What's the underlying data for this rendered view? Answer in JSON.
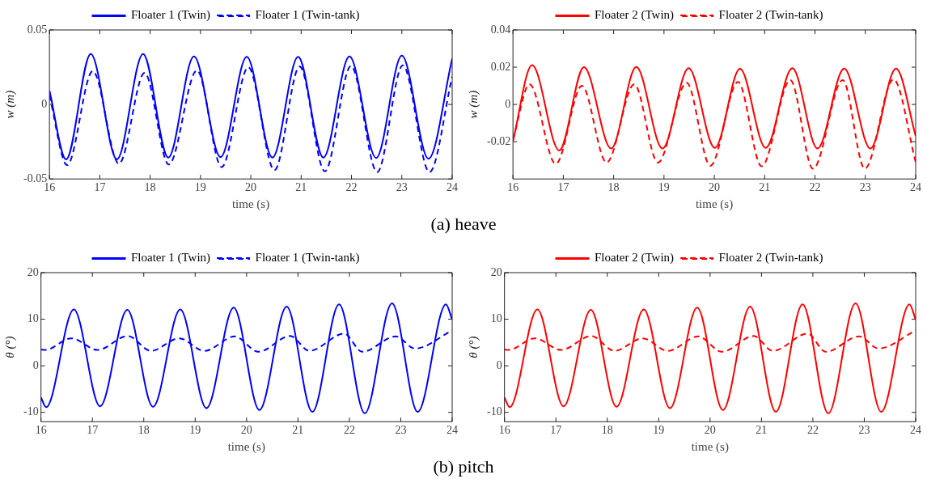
{
  "chart_data": [
    {
      "type": "line",
      "xlabel": "time (s)",
      "ylabel": "w (m)",
      "xlim": [
        16,
        24
      ],
      "xticks": [
        16,
        17,
        18,
        19,
        20,
        21,
        22,
        23,
        24
      ],
      "ylim": [
        -0.05,
        0.05
      ],
      "yticks": [
        -0.05,
        0,
        0.05
      ],
      "legend": "top",
      "marker": "none",
      "annotations": [
        "(a) heave"
      ],
      "series": [
        {
          "name": "Floater 1 (Twin)",
          "color": "#0000ff",
          "line_style": "solid",
          "x": [
            16,
            16.33,
            16.82,
            17.34,
            17.86,
            18.36,
            18.87,
            19.4,
            19.92,
            20.43,
            20.94,
            21.44,
            21.96,
            22.49,
            23,
            23.53,
            24
          ],
          "values": [
            0.0093,
            -0.0369,
            0.0339,
            -0.0368,
            0.0339,
            -0.0356,
            0.0322,
            -0.0353,
            0.0319,
            -0.0356,
            0.0319,
            -0.0356,
            0.0322,
            -0.0359,
            0.0327,
            -0.0364,
            0.0308
          ]
        },
        {
          "name": "Floater 1 (Twin-tank)",
          "color": "#0000ff",
          "line_style": "dashed",
          "x": [
            16,
            16.35,
            16.86,
            17.38,
            17.89,
            18.37,
            18.93,
            19.42,
            19.95,
            20.47,
            20.97,
            21.47,
            21.99,
            22.51,
            23.02,
            23.55,
            24
          ],
          "values": [
            0.006,
            -0.0407,
            0.0224,
            -0.0398,
            0.0212,
            -0.0403,
            0.0229,
            -0.042,
            0.0249,
            -0.0441,
            0.0254,
            -0.0449,
            0.0258,
            -0.0454,
            0.0263,
            -0.0454,
            0.0186
          ]
        }
      ]
    },
    {
      "type": "line",
      "xlabel": "time (s)",
      "ylabel": "w (m)",
      "xlim": [
        16,
        24
      ],
      "xticks": [
        16,
        17,
        18,
        19,
        20,
        21,
        22,
        23,
        24
      ],
      "ylim": [
        -0.04,
        0.04
      ],
      "yticks": [
        -0.02,
        0,
        0.02,
        0.04
      ],
      "legend": "top",
      "marker": "none",
      "series": [
        {
          "name": "Floater 2 (Twin)",
          "color": "#ff0000",
          "line_style": "solid",
          "x": [
            16,
            16.38,
            16.92,
            17.41,
            17.95,
            18.45,
            18.97,
            19.49,
            20.01,
            20.51,
            21.02,
            21.55,
            22.05,
            22.58,
            23.1,
            23.61,
            24
          ],
          "values": [
            -0.0196,
            0.0211,
            -0.0247,
            0.02,
            -0.0236,
            0.0201,
            -0.0236,
            0.0195,
            -0.0233,
            0.0191,
            -0.0233,
            0.0195,
            -0.0236,
            0.0193,
            -0.0236,
            0.0193,
            -0.0169
          ]
        },
        {
          "name": "Floater 2 (Twin-tank)",
          "color": "#ff0000",
          "line_style": "dashed",
          "x": [
            16,
            16.33,
            16.85,
            17.37,
            17.86,
            18.41,
            18.88,
            19.45,
            19.92,
            20.47,
            20.94,
            21.51,
            21.96,
            22.55,
            22.99,
            23.56,
            24
          ],
          "values": [
            -0.0189,
            0.0108,
            -0.0319,
            0.01,
            -0.0312,
            0.0108,
            -0.0312,
            0.0117,
            -0.0329,
            0.0121,
            -0.0332,
            0.0131,
            -0.0345,
            0.0131,
            -0.0345,
            0.0135,
            -0.0309
          ]
        }
      ]
    },
    {
      "type": "line",
      "xlabel": "time (s)",
      "ylabel": "θ (°)",
      "xlim": [
        16,
        24
      ],
      "xticks": [
        16,
        17,
        18,
        19,
        20,
        21,
        22,
        23,
        24
      ],
      "ylim": [
        -12,
        20
      ],
      "yticks": [
        -10,
        0,
        10,
        20
      ],
      "legend": "top",
      "marker": "none",
      "annotations": [
        "(b) pitch"
      ],
      "series": [
        {
          "name": "Floater 1 (Twin)",
          "color": "#0000ff",
          "line_style": "solid",
          "x": [
            16,
            16.1,
            16.64,
            17.15,
            17.68,
            18.18,
            18.71,
            19.22,
            19.75,
            20.25,
            20.78,
            21.28,
            21.8,
            22.3,
            22.83,
            23.33,
            23.88,
            24
          ],
          "values": [
            -6.8,
            -8.9,
            12.1,
            -8.7,
            12,
            -8.8,
            12.1,
            -9.1,
            12.5,
            -9.5,
            12.7,
            -9.9,
            13.2,
            -10.2,
            13.4,
            -9.9,
            13.2,
            9.9
          ]
        },
        {
          "name": "Floater 1 (Twin-tank)",
          "color": "#0000ff",
          "line_style": "dashed",
          "x": [
            16,
            16.08,
            16.59,
            17.1,
            17.69,
            18.14,
            18.69,
            19.18,
            19.77,
            20.23,
            20.85,
            21.22,
            21.9,
            22.25,
            22.9,
            23.28,
            24
          ],
          "values": [
            3.5,
            3.4,
            5.9,
            3.4,
            6.4,
            3.2,
            5.9,
            3.2,
            6.3,
            3,
            6.4,
            3.2,
            6.9,
            3,
            6.3,
            3.7,
            7.6
          ]
        }
      ]
    },
    {
      "type": "line",
      "xlabel": "time (s)",
      "ylabel": "θ (°)",
      "xlim": [
        16,
        24
      ],
      "xticks": [
        16,
        17,
        18,
        19,
        20,
        21,
        22,
        23,
        24
      ],
      "ylim": [
        -12,
        20
      ],
      "yticks": [
        -10,
        0,
        10,
        20
      ],
      "legend": "top",
      "marker": "none",
      "series": [
        {
          "name": "Floater 2 (Twin)",
          "color": "#ff0000",
          "line_style": "solid",
          "x": [
            16,
            16.1,
            16.64,
            17.15,
            17.68,
            18.18,
            18.71,
            19.22,
            19.75,
            20.25,
            20.78,
            21.28,
            21.8,
            22.3,
            22.83,
            23.33,
            23.88,
            24
          ],
          "values": [
            -6.8,
            -8.9,
            12.1,
            -8.7,
            12,
            -8.8,
            12.1,
            -9.1,
            12.5,
            -9.5,
            12.7,
            -9.9,
            13.2,
            -10.2,
            13.4,
            -9.9,
            13.2,
            9.9
          ]
        },
        {
          "name": "Floater 2 (Twin-tank)",
          "color": "#ff0000",
          "line_style": "dashed",
          "x": [
            16,
            16.08,
            16.59,
            17.1,
            17.69,
            18.14,
            18.69,
            19.18,
            19.77,
            20.23,
            20.85,
            21.22,
            21.9,
            22.25,
            22.9,
            23.28,
            24
          ],
          "values": [
            3.5,
            3.4,
            5.9,
            3.4,
            6.4,
            3.2,
            5.9,
            3.2,
            6.3,
            3,
            6.4,
            3.2,
            6.9,
            3,
            6.3,
            3.7,
            7.6
          ]
        }
      ]
    }
  ]
}
